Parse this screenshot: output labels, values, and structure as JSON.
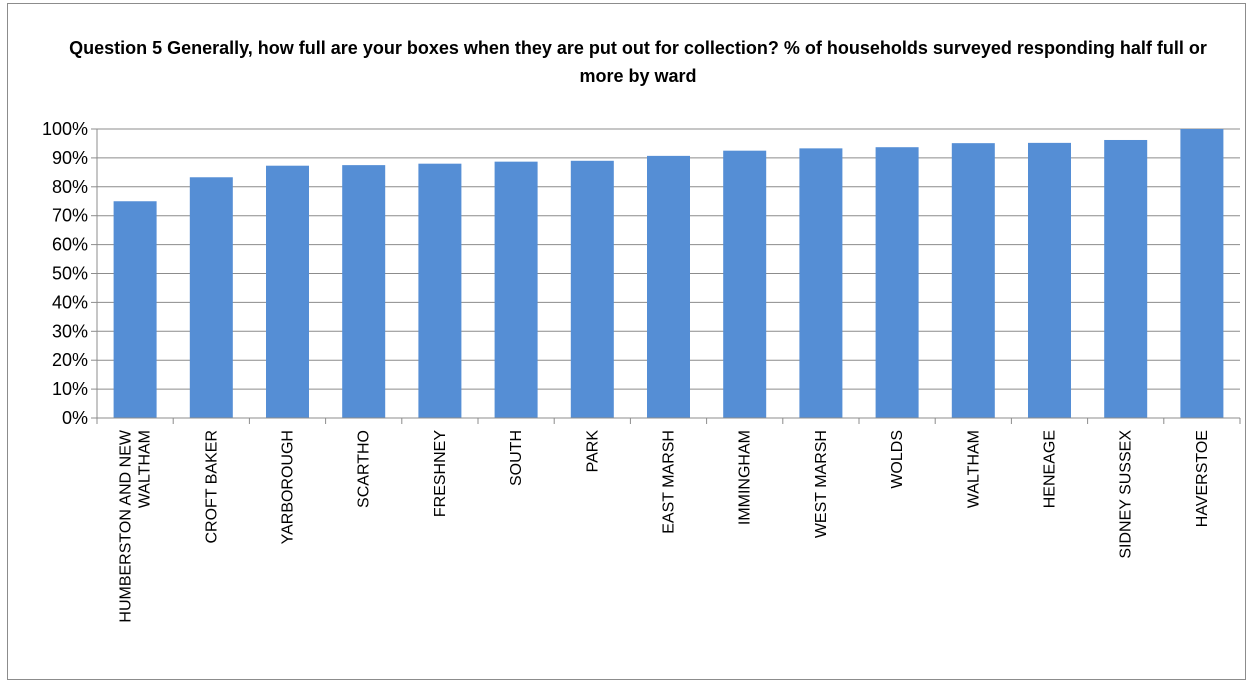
{
  "chart_data": {
    "type": "bar",
    "title": "Question 5  Generally, how full are your boxes when they are put out for collection? % of households surveyed responding half full or more by ward",
    "categories": [
      "HUMBERSTON AND NEW WALTHAM",
      "CROFT BAKER",
      "YARBOROUGH",
      "SCARTHO",
      "FRESHNEY",
      "SOUTH",
      "PARK",
      "EAST MARSH",
      "IMMINGHAM",
      "WEST MARSH",
      "WOLDS",
      "WALTHAM",
      "HENEAGE",
      "SIDNEY SUSSEX",
      "HAVERSTOE"
    ],
    "category_lines": [
      [
        "HUMBERSTON AND NEW",
        "WALTHAM"
      ],
      [
        "CROFT BAKER"
      ],
      [
        "YARBOROUGH"
      ],
      [
        "SCARTHO"
      ],
      [
        "FRESHNEY"
      ],
      [
        "SOUTH"
      ],
      [
        "PARK"
      ],
      [
        "EAST MARSH"
      ],
      [
        "IMMINGHAM"
      ],
      [
        "WEST MARSH"
      ],
      [
        "WOLDS"
      ],
      [
        "WALTHAM"
      ],
      [
        "HENEAGE"
      ],
      [
        "SIDNEY SUSSEX"
      ],
      [
        "HAVERSTOE"
      ]
    ],
    "values": [
      75,
      83.3,
      87.3,
      87.5,
      88,
      88.7,
      89,
      90.7,
      92.5,
      93.3,
      93.7,
      95.1,
      95.2,
      96.2,
      100
    ],
    "ylim": [
      0,
      100
    ],
    "yticks": [
      "0%",
      "10%",
      "20%",
      "30%",
      "40%",
      "50%",
      "60%",
      "70%",
      "80%",
      "90%",
      "100%"
    ],
    "xlabel": "",
    "ylabel": "",
    "grid": true,
    "legend": "none",
    "bar_color": "#558ed5"
  }
}
